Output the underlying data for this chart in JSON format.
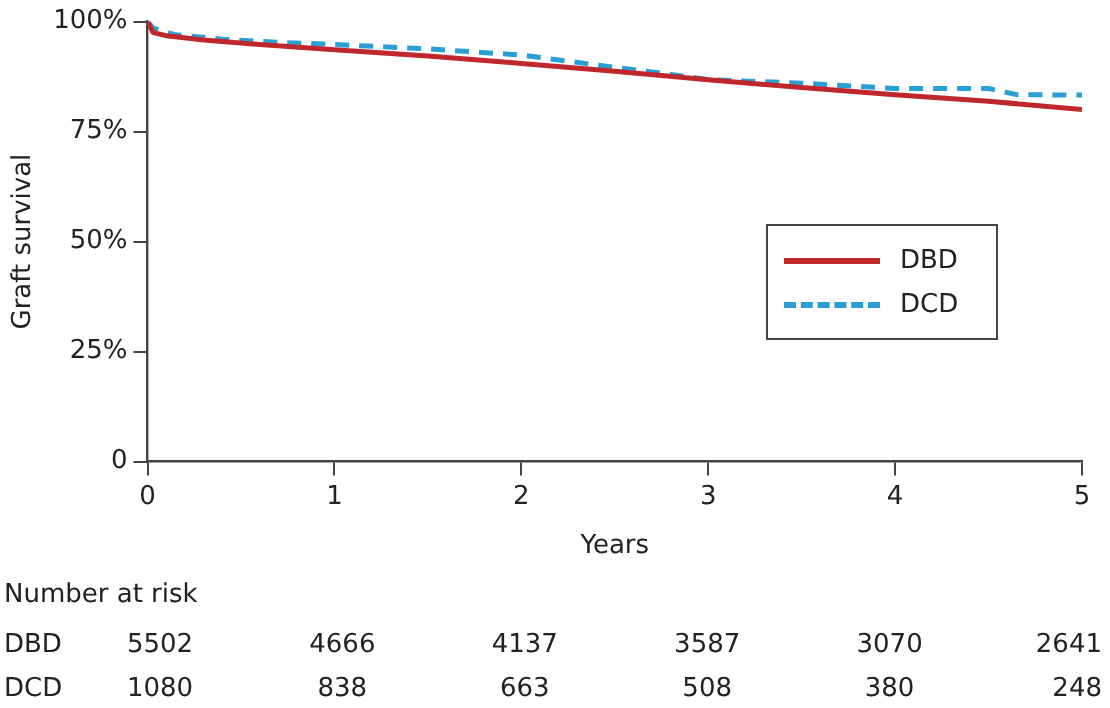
{
  "chart_data": {
    "type": "line",
    "xlabel": "Years",
    "ylabel": "Graft survival",
    "xlim": [
      0,
      5
    ],
    "xticks": [
      0,
      1,
      2,
      3,
      4,
      5
    ],
    "ylim": [
      0,
      100
    ],
    "yticks": [
      {
        "value": 0,
        "label": "0"
      },
      {
        "value": 25,
        "label": "25%"
      },
      {
        "value": 50,
        "label": "50%"
      },
      {
        "value": 75,
        "label": "75%"
      },
      {
        "value": 100,
        "label": "100%"
      }
    ],
    "series": [
      {
        "name": "DBD",
        "color": "#c0272d",
        "line_style": "solid",
        "x": [
          0,
          0.03,
          0.1,
          0.3,
          0.6,
          1,
          1.5,
          2,
          2.5,
          3,
          3.5,
          4,
          4.5,
          5
        ],
        "values": [
          100,
          97.5,
          96.8,
          95.8,
          94.8,
          93.6,
          92.2,
          90.5,
          88.7,
          86.8,
          85.0,
          83.4,
          81.9,
          80.0
        ]
      },
      {
        "name": "DCD",
        "color": "#2a9fd6",
        "line_style": "dashed",
        "x": [
          0,
          0.03,
          0.15,
          0.4,
          0.7,
          1,
          1.5,
          2,
          2.5,
          2.8,
          3,
          3.5,
          4,
          4.5,
          4.65,
          5
        ],
        "values": [
          100,
          98.5,
          97.0,
          96.0,
          95.3,
          94.8,
          93.8,
          92.4,
          89.6,
          88.0,
          86.8,
          86.0,
          84.8,
          84.8,
          83.4,
          83.3
        ]
      }
    ],
    "grid": false,
    "legend": "right",
    "marker": "none",
    "annotations": [
      "Number at risk",
      "DBD",
      "5502",
      "4666",
      "4137",
      "3587",
      "3070",
      "2641",
      "DCD",
      "1080",
      "838",
      "663",
      "508",
      "380",
      "248"
    ]
  }
}
